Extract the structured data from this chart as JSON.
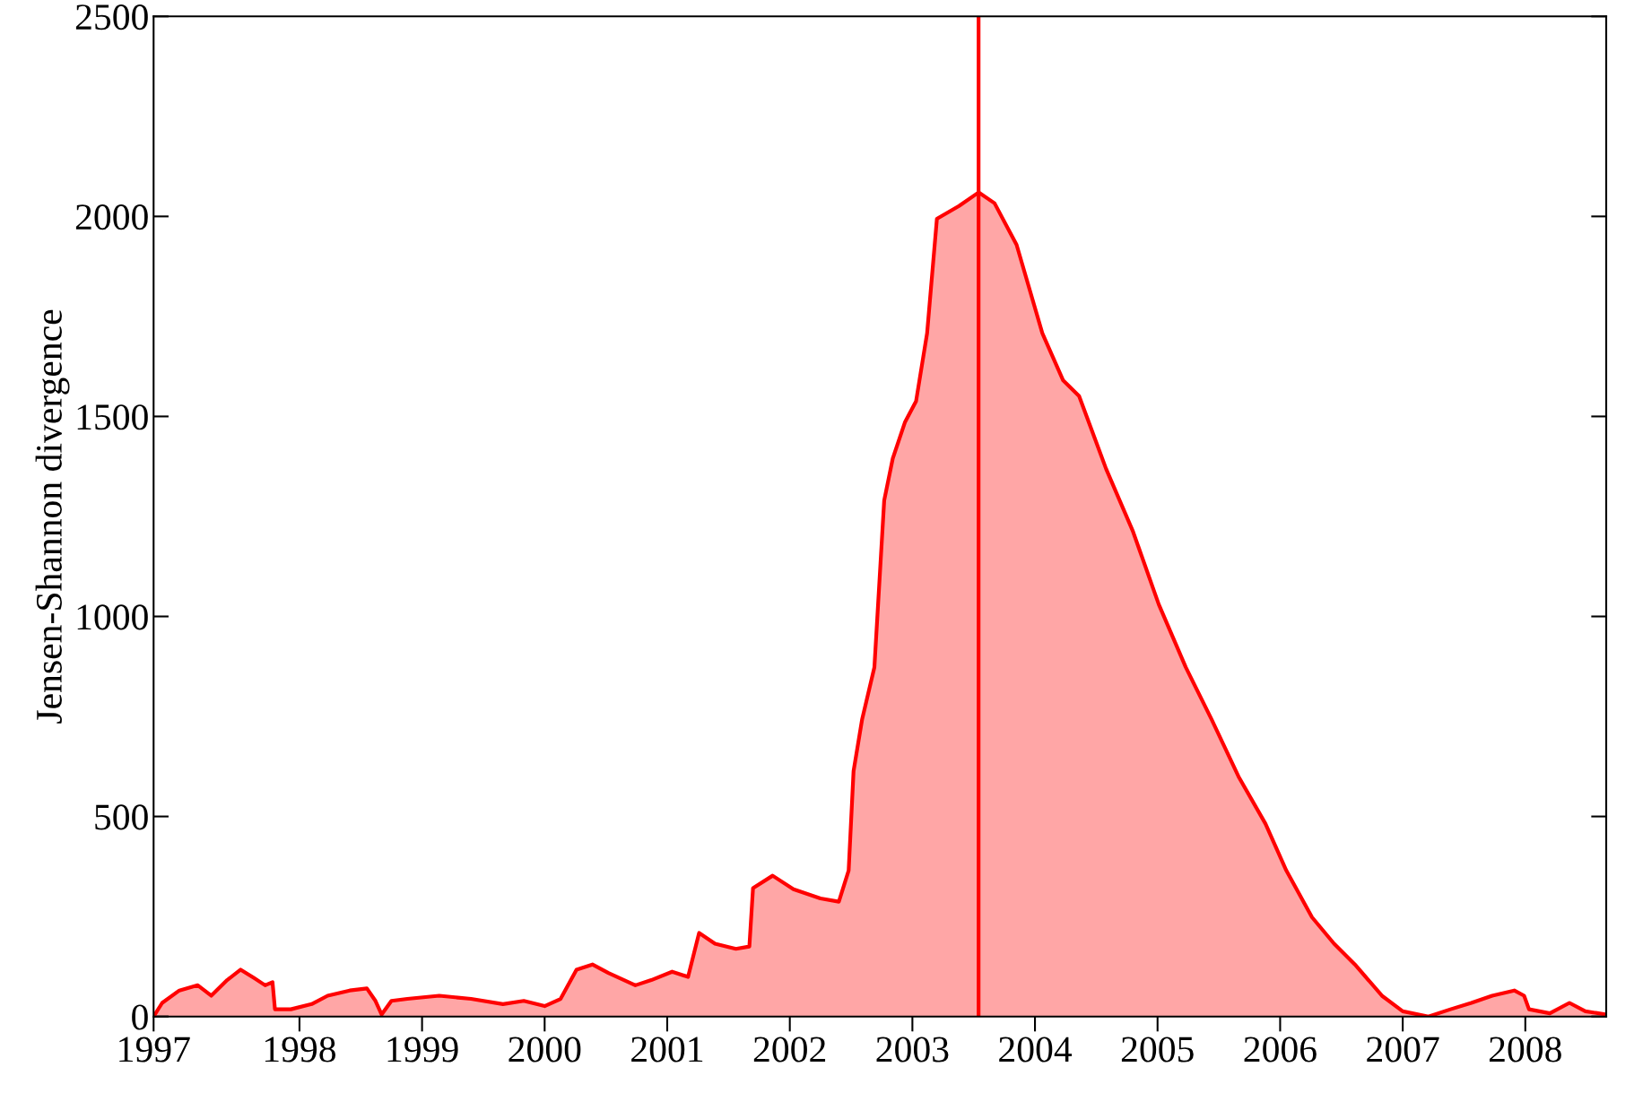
{
  "chart_data": {
    "type": "area",
    "ylabel": "Jensen-Shannon divergence",
    "x": [
      1996.81,
      1996.88,
      1997.02,
      1997.17,
      1997.28,
      1997.41,
      1997.52,
      1997.63,
      1997.72,
      1997.78,
      1997.8,
      1997.93,
      1998.1,
      1998.23,
      1998.41,
      1998.55,
      1998.62,
      1998.67,
      1998.75,
      1998.88,
      1999.14,
      1999.4,
      1999.66,
      1999.83,
      2000.0,
      2000.13,
      2000.26,
      2000.39,
      2000.52,
      2000.74,
      2000.87,
      2001.04,
      2001.17,
      2001.26,
      2001.39,
      2001.56,
      2001.67,
      2001.7,
      2001.86,
      2002.03,
      2002.25,
      2002.4,
      2002.48,
      2002.52,
      2002.59,
      2002.69,
      2002.77,
      2002.84,
      2002.94,
      2003.03,
      2003.12,
      2003.2,
      2003.38,
      2003.54,
      2003.67,
      2003.85,
      2004.06,
      2004.23,
      2004.36,
      2004.58,
      2004.8,
      2005.01,
      2005.23,
      2005.44,
      2005.66,
      2005.88,
      2006.05,
      2006.26,
      2006.44,
      2006.61,
      2006.83,
      2007.0,
      2007.21,
      2007.39,
      2007.56,
      2007.73,
      2007.91,
      2007.99,
      2008.03,
      2008.2,
      2008.36,
      2008.49,
      2008.66
    ],
    "series": [
      {
        "color": "#ff0000",
        "values": [
          0,
          34,
          65,
          78,
          52,
          91,
          117,
          96,
          78,
          86,
          18,
          18,
          31,
          52,
          65,
          70,
          39,
          5,
          39,
          44,
          52,
          44,
          31,
          39,
          26,
          44,
          117,
          130,
          109,
          78,
          91,
          112,
          99,
          209,
          182,
          169,
          175,
          321,
          352,
          318,
          295,
          287,
          365,
          613,
          743,
          873,
          1290,
          1395,
          1486,
          1538,
          1708,
          1994,
          2026,
          2060,
          2033,
          1929,
          1708,
          1590,
          1551,
          1369,
          1212,
          1030,
          873,
          743,
          600,
          482,
          365,
          248,
          182,
          130,
          52,
          13,
          0,
          18,
          34,
          52,
          65,
          52,
          18,
          8,
          34,
          13,
          5
        ]
      }
    ],
    "xlim": [
      1996.81,
      2008.66
    ],
    "xticks": [
      {
        "value": 1996.81,
        "label": "1997"
      },
      1998,
      1999,
      2000,
      2001,
      2002,
      2003,
      2004,
      2005,
      2006,
      2007,
      2008
    ],
    "ylim": [
      0,
      2500
    ],
    "yticks": [
      0,
      500,
      1000,
      1500,
      2000,
      2500
    ],
    "ref_lines": [
      {
        "axis": "x",
        "value": 2003.54,
        "color": "#ff0000"
      }
    ],
    "grid": false,
    "legend": false
  }
}
